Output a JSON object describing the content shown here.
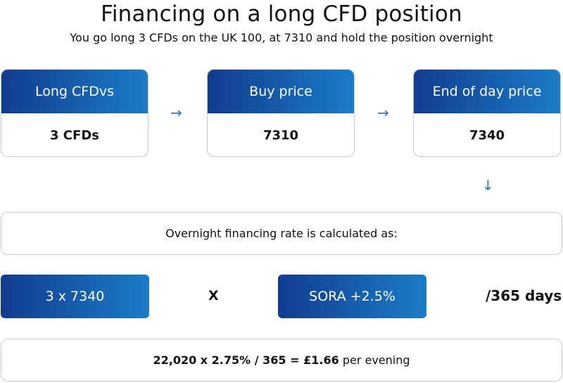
{
  "title": "Financing on a long CFD position",
  "subtitle": "You go long 3 CFDs on the UK 100, at 7310 and hold the position overnight",
  "cards": [
    {
      "heading": "Long CFDvs",
      "value": "3 CFDs"
    },
    {
      "heading": "Buy price",
      "value": "7310"
    },
    {
      "heading": "End of day price",
      "value": "7340"
    }
  ],
  "arrows": {
    "right": "→",
    "down": "↓"
  },
  "calc_intro": "Overnight financing rate is calculated as:",
  "formula": {
    "left_term": "3 x 7340",
    "operator": "X",
    "right_term": "SORA +2.5%",
    "divisor": "/365 days"
  },
  "result": {
    "equation": "22,020 x 2.75% / 365 = £1.66",
    "suffix": "per evening"
  },
  "colors": {
    "gradient_start": "#123c8f",
    "gradient_end": "#1a7cc7",
    "arrow": "#2a6fc0",
    "border": "#c9c9c9"
  }
}
